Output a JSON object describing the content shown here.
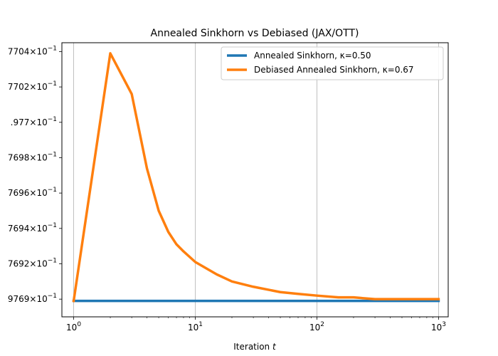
{
  "chart_data": {
    "type": "line",
    "title": "Annealed Sinkhorn vs Debiased (JAX/OTT)",
    "xlabel": "Iteration",
    "xlabel_var": "t",
    "ylabel": "",
    "xscale": "log",
    "xlim": [
      0.8,
      1200
    ],
    "ylim": [
      0.97689,
      0.977045
    ],
    "grid": "x-major",
    "legend_position": "top-right",
    "x_ticks": [
      {
        "value": 1,
        "label_base": "10",
        "label_exp": "0"
      },
      {
        "value": 10,
        "label_base": "10",
        "label_exp": "1"
      },
      {
        "value": 100,
        "label_base": "10",
        "label_exp": "2"
      },
      {
        "value": 1000,
        "label_base": "10",
        "label_exp": "3"
      }
    ],
    "y_ticks": [
      {
        "value": 0.9769,
        "mantissa": "9769",
        "exp": "−1"
      },
      {
        "value": 0.97692,
        "mantissa": "7692",
        "exp": "−1"
      },
      {
        "value": 0.97694,
        "mantissa": "7694",
        "exp": "−1"
      },
      {
        "value": 0.97696,
        "mantissa": "7696",
        "exp": "−1"
      },
      {
        "value": 0.97698,
        "mantissa": "7698",
        "exp": "−1"
      },
      {
        "value": 0.977,
        "mantissa": ".977",
        "exp": "−1"
      },
      {
        "value": 0.97702,
        "mantissa": "7702",
        "exp": "−1"
      },
      {
        "value": 0.97704,
        "mantissa": "7704",
        "exp": "−1"
      }
    ],
    "y_tick_times": "×",
    "series": [
      {
        "name": "Annealed Sinkhorn, κ=0.50",
        "color": "#1f77b4",
        "x": [
          1,
          1000
        ],
        "y": [
          0.976899,
          0.976899
        ]
      },
      {
        "name": "Debiased Annealed Sinkhorn, κ=0.67",
        "color": "#ff7f0e",
        "x": [
          1,
          2,
          3,
          4,
          5,
          6,
          7,
          8,
          10,
          15,
          20,
          30,
          50,
          70,
          100,
          150,
          200,
          300,
          400,
          500,
          700,
          1000
        ],
        "y": [
          0.976899,
          0.977039,
          0.977016,
          0.976974,
          0.97695,
          0.976938,
          0.976931,
          0.976927,
          0.976921,
          0.976914,
          0.97691,
          0.976907,
          0.976904,
          0.976903,
          0.976902,
          0.976901,
          0.976901,
          0.9769,
          0.9769,
          0.9769,
          0.9769,
          0.9769
        ]
      }
    ]
  }
}
